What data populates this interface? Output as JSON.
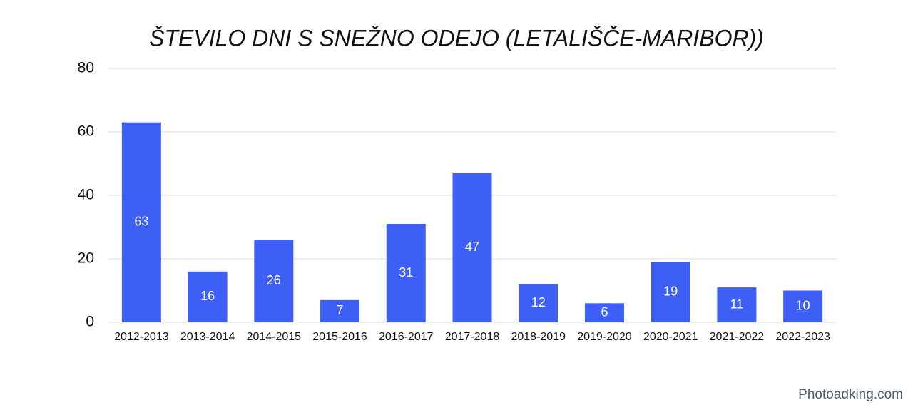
{
  "chart_data": {
    "type": "bar",
    "title": "ŠTEVILO DNI S SNEŽNO ODEJO (LETALIŠČE-MARIBOR))",
    "categories": [
      "2012-2013",
      "2013-2014",
      "2014-2015",
      "2015-2016",
      "2016-2017",
      "2017-2018",
      "2018-2019",
      "2019-2020",
      "2020-2021",
      "2021-2022",
      "2022-2023"
    ],
    "values": [
      63,
      16,
      26,
      7,
      31,
      47,
      12,
      6,
      19,
      11,
      10
    ],
    "color": "#3d5ff5",
    "ylim": [
      0,
      80
    ],
    "yticks": [
      0,
      20,
      40,
      60,
      80
    ],
    "grid": true
  },
  "watermark": "Photoadking.com"
}
